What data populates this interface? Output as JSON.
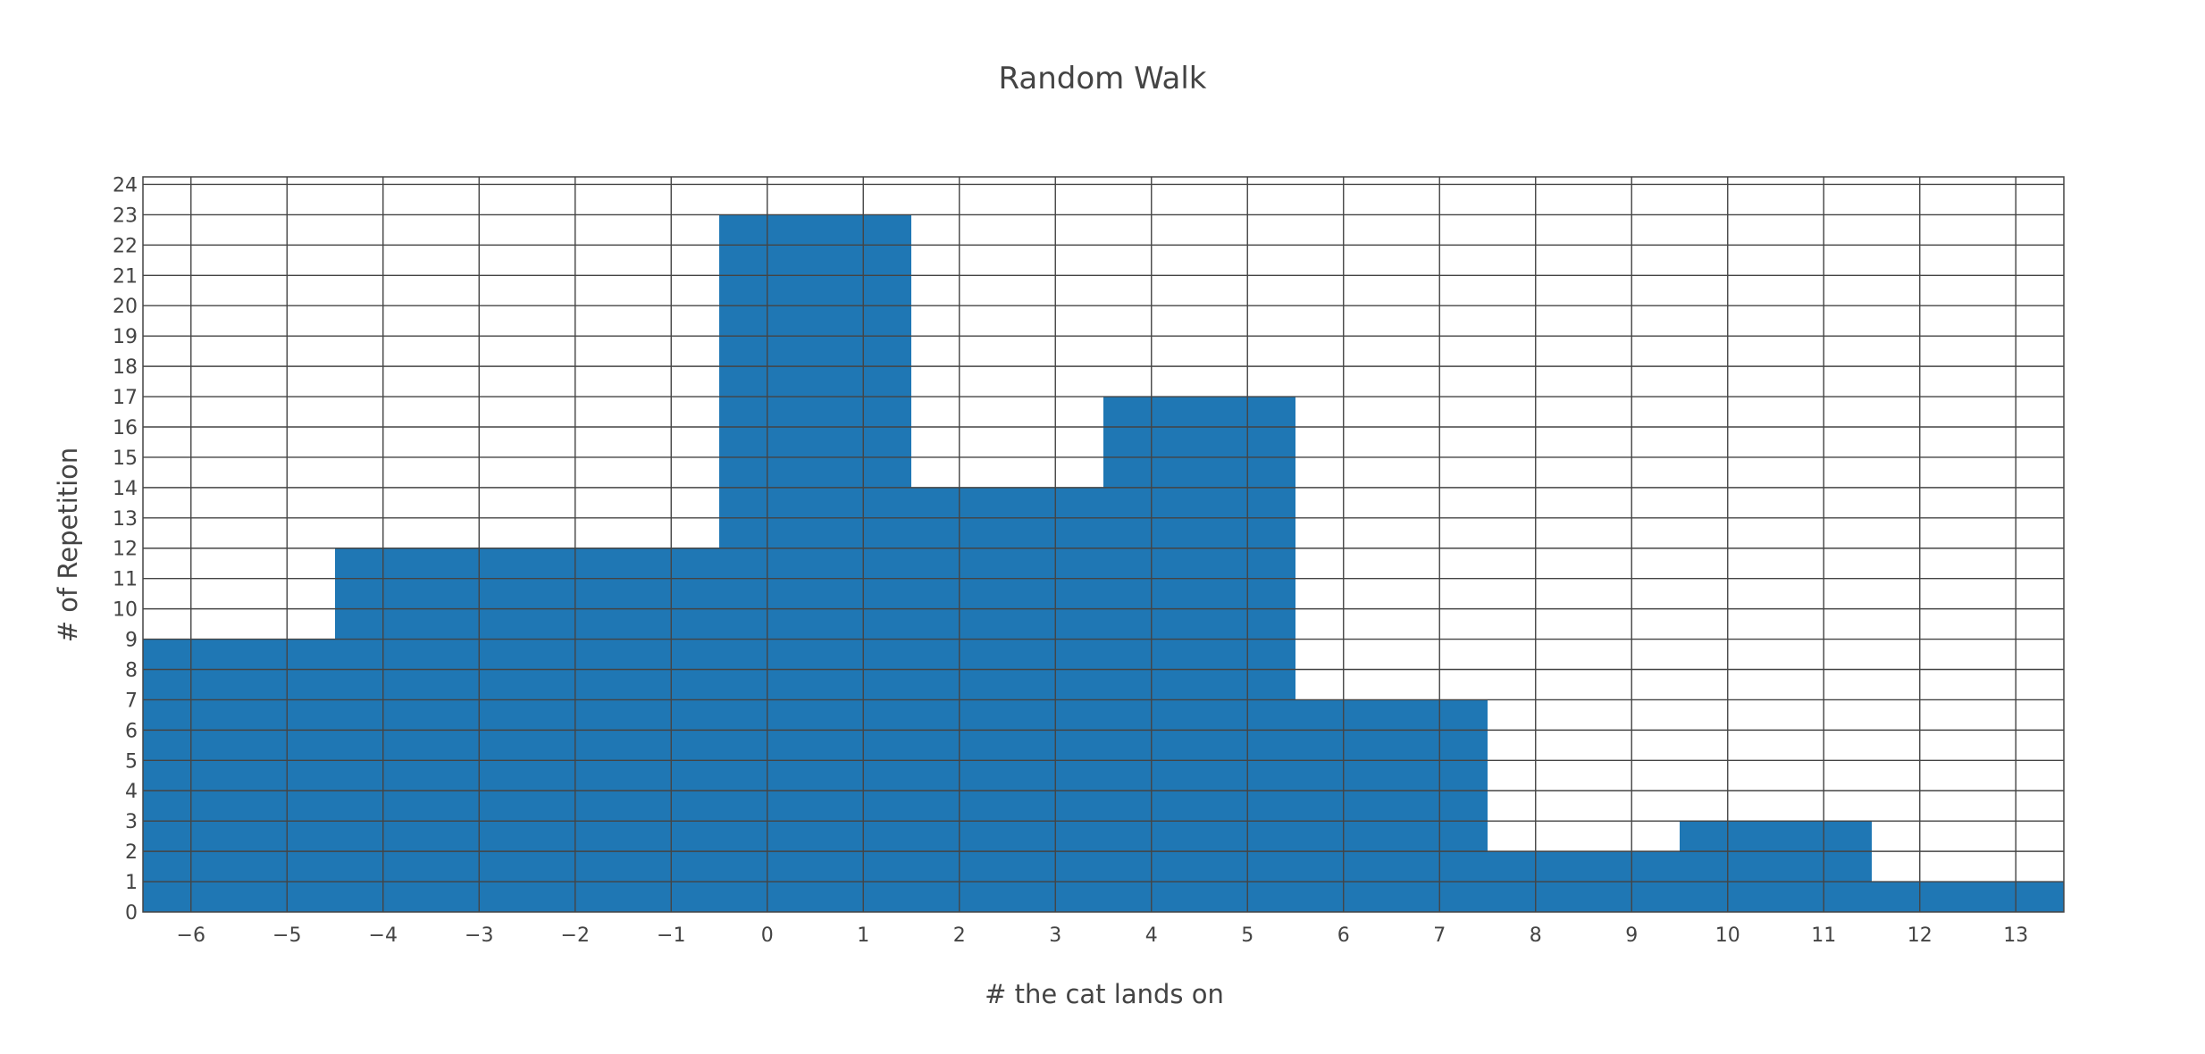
{
  "chart_data": {
    "type": "bar",
    "title": "Random Walk",
    "xlabel": "# the cat lands on",
    "ylabel": "# of Repetition",
    "categories": [
      -6,
      -5,
      -4,
      -3,
      -2,
      -1,
      0,
      1,
      2,
      3,
      4,
      5,
      6,
      7,
      8,
      9,
      10,
      11,
      12,
      13
    ],
    "bins": [
      {
        "start": -6.5,
        "end": -4.5,
        "count": 9
      },
      {
        "start": -4.5,
        "end": -0.5,
        "count": 12
      },
      {
        "start": -0.5,
        "end": 1.5,
        "count": 23
      },
      {
        "start": 1.5,
        "end": 3.5,
        "count": 14
      },
      {
        "start": 3.5,
        "end": 5.5,
        "count": 17
      },
      {
        "start": 5.5,
        "end": 7.5,
        "count": 7
      },
      {
        "start": 7.5,
        "end": 9.5,
        "count": 2
      },
      {
        "start": 9.5,
        "end": 11.5,
        "count": 3
      },
      {
        "start": 11.5,
        "end": 13.5,
        "count": 1
      }
    ],
    "xlim": [
      -6.5,
      13.5
    ],
    "ylim": [
      0,
      24.25
    ],
    "yticks": [
      0,
      1,
      2,
      3,
      4,
      5,
      6,
      7,
      8,
      9,
      10,
      11,
      12,
      13,
      14,
      15,
      16,
      17,
      18,
      19,
      20,
      21,
      22,
      23,
      24
    ],
    "grid": true,
    "bar_color": "#1f77b4",
    "grid_color": "#444444"
  }
}
